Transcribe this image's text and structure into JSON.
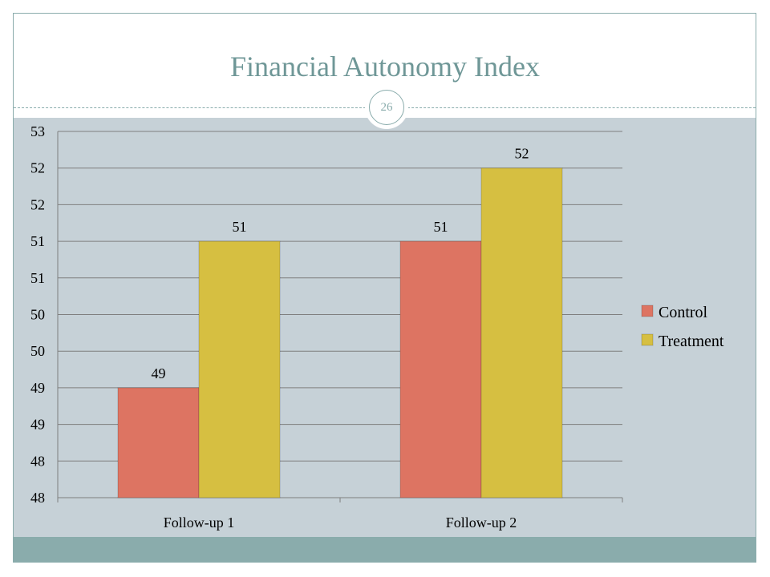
{
  "slide": {
    "title": "Financial Autonomy Index",
    "page_number": "26"
  },
  "colors": {
    "control": "#dd7462",
    "treatment": "#d6bf41",
    "background": "#c6d1d7",
    "accent": "#8aacac"
  },
  "chart_data": {
    "type": "bar",
    "categories": [
      "Follow-up 1",
      "Follow-up 2"
    ],
    "series": [
      {
        "name": "Control",
        "values": [
          49,
          51
        ],
        "labels": [
          "49",
          "51"
        ]
      },
      {
        "name": "Treatment",
        "values": [
          51,
          52
        ],
        "labels": [
          "51",
          "52"
        ]
      }
    ],
    "ylim": [
      47.5,
      52.5
    ],
    "yticks": [
      47.5,
      48,
      48.5,
      49,
      49.5,
      50,
      50.5,
      51,
      51.5,
      52,
      52.5
    ],
    "ytick_labels": [
      "48",
      "48",
      "49",
      "49",
      "50",
      "50",
      "51",
      "51",
      "52",
      "52",
      "53"
    ],
    "legend_position": "right",
    "grid": true
  }
}
